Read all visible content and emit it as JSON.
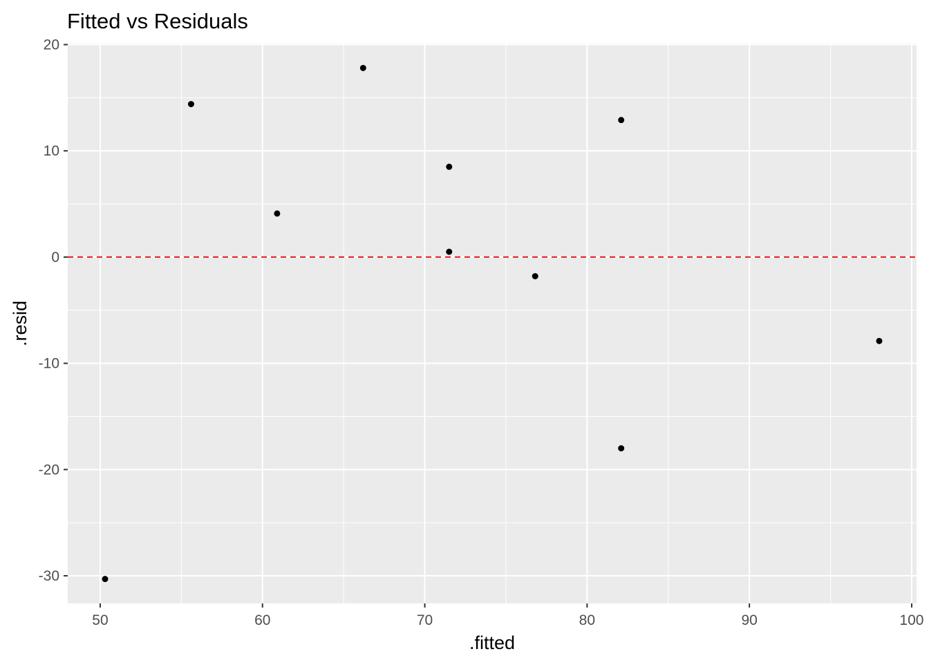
{
  "chart_data": {
    "type": "scatter",
    "title": "Fitted vs Residuals",
    "xlabel": ".fitted",
    "ylabel": ".resid",
    "xlim": [
      48.0,
      100.3
    ],
    "ylim": [
      -32.6,
      20.1
    ],
    "x_ticks": [
      50,
      60,
      70,
      80,
      90,
      100
    ],
    "y_ticks": [
      20,
      10,
      0,
      -10,
      -20,
      -30
    ],
    "x_tick_labels": [
      "50",
      "60",
      "70",
      "80",
      "90",
      "100"
    ],
    "y_tick_labels": [
      "20",
      "10",
      "0",
      "-10",
      "-20",
      "-30"
    ],
    "grid": true,
    "points": [
      {
        "x": 50.3,
        "y": -30.3
      },
      {
        "x": 55.6,
        "y": 14.4
      },
      {
        "x": 60.9,
        "y": 4.1
      },
      {
        "x": 66.2,
        "y": 17.8
      },
      {
        "x": 71.5,
        "y": 8.5
      },
      {
        "x": 71.5,
        "y": 0.5
      },
      {
        "x": 76.8,
        "y": -1.8
      },
      {
        "x": 82.1,
        "y": 12.9
      },
      {
        "x": 82.1,
        "y": -18.0
      },
      {
        "x": 98.0,
        "y": -7.9
      }
    ],
    "reference_line": {
      "y": 0,
      "style": "dashed",
      "color": "#e41a1c"
    },
    "colors": {
      "panel": "#ebebeb",
      "grid": "#ffffff",
      "points": "#000000"
    }
  }
}
